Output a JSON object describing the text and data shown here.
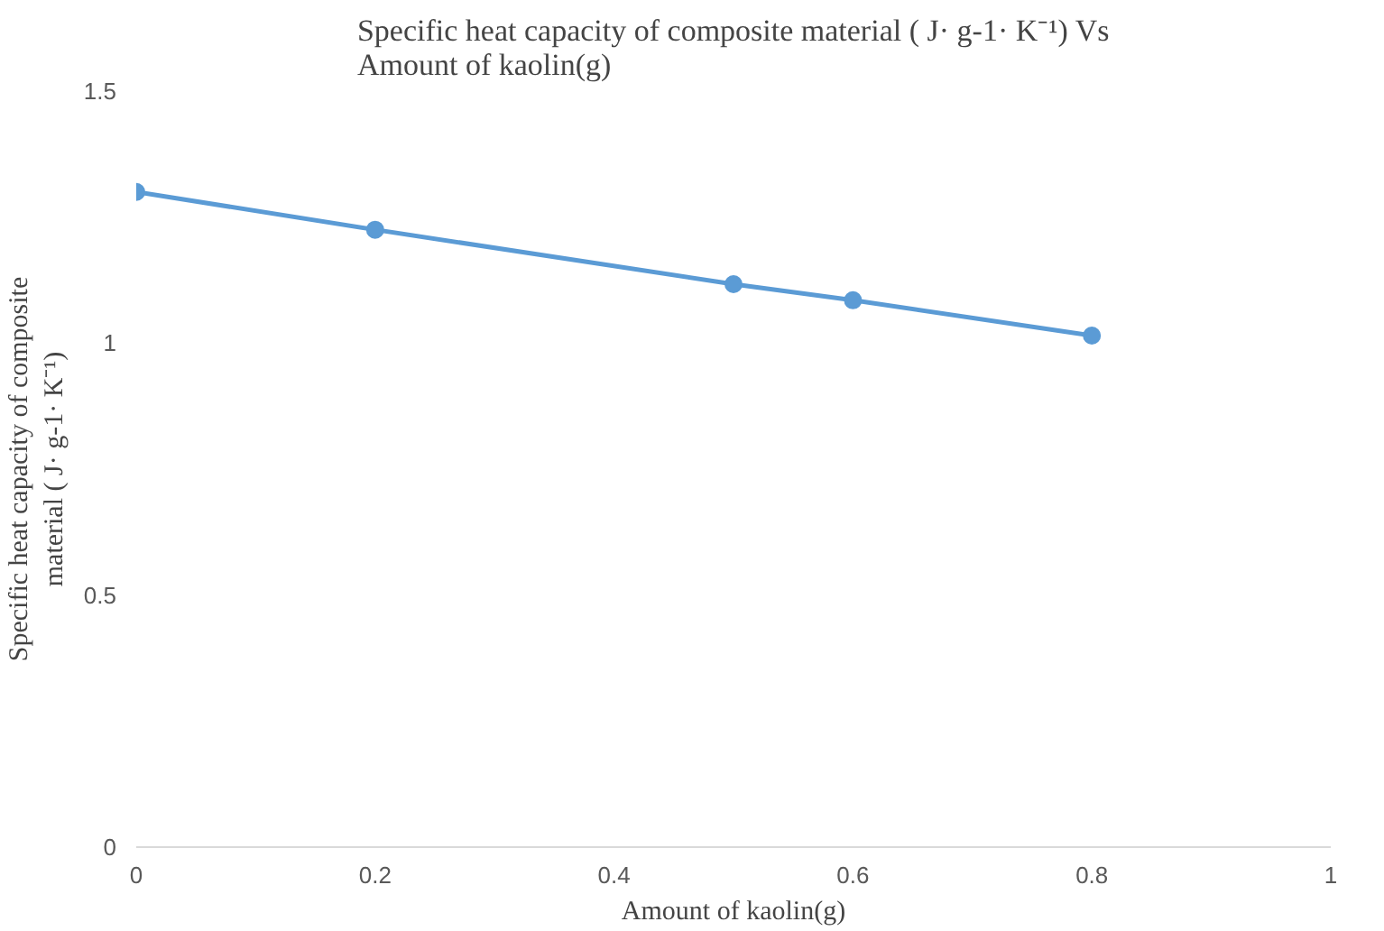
{
  "chart_data": {
    "type": "line",
    "title": "Specific heat capacity of composite material ( J· g-1· K⁻¹) Vs\nAmount of kaolin(g)",
    "xlabel": "Amount of kaolin(g)",
    "ylabel": "Specific heat capacity of composite\nmaterial ( J· g-1· K⁻¹)",
    "x": [
      0,
      0.2,
      0.5,
      0.6,
      0.8
    ],
    "series": [
      {
        "color": "#5b9bd5",
        "values": [
          1.3,
          1.225,
          1.117,
          1.085,
          1.015
        ]
      }
    ],
    "xlim": [
      0,
      1
    ],
    "xticks": [
      0,
      0.2,
      0.4,
      0.6,
      0.8,
      1
    ],
    "ylim": [
      0,
      1.5
    ],
    "yticks": [
      0,
      0.5,
      1,
      1.5
    ],
    "marker": "circle",
    "line_style": "solid",
    "grid": false
  }
}
